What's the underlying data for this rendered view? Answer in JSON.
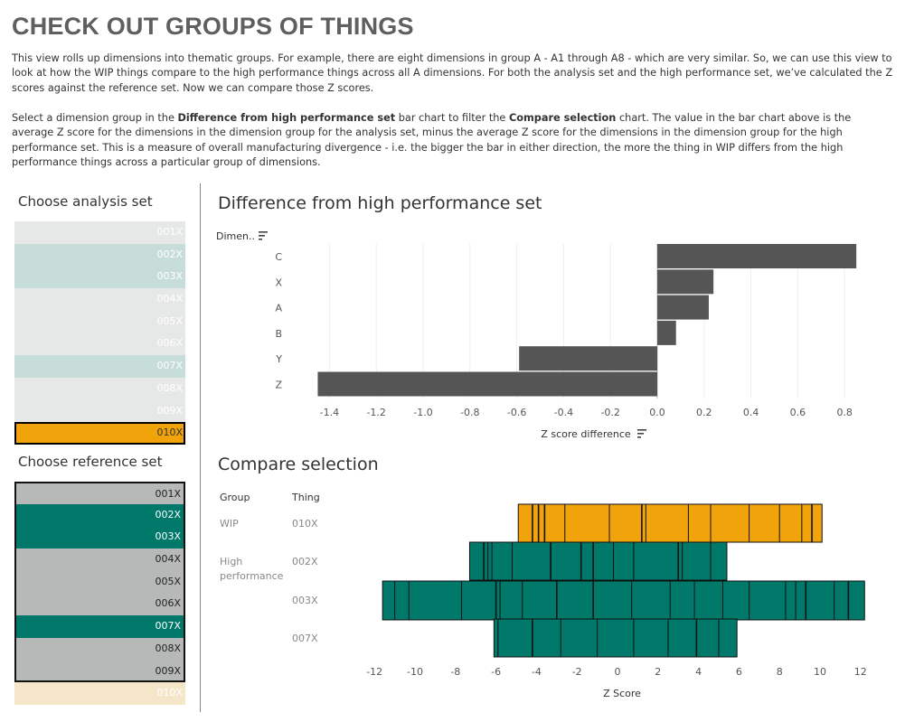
{
  "title": "CHECK OUT GROUPS OF THINGS",
  "intro": {
    "para1": "This view rolls up dimensions into thematic groups. For example, there are eight dimensions in group A - A1 through A8 - which are very similar. So, we can use this view to look at how the WIP things compare to the high performance things across all A dimensions. For both the analysis set and the high performance set, we’ve calculated the Z scores against the reference set. Now we can compare those Z scores.",
    "para2_a": "Select a dimension group in the ",
    "para2_b": "Difference from high performance set",
    "para2_c": " bar chart to filter the ",
    "para2_d": "Compare selection",
    "para2_e": " chart. The value in the bar chart above is the average Z score for the dimensions in the dimension group for the analysis set, minus the average Z score for the dimensions in the dimension group for the high performance set. This is a measure of overall manufacturing divergence - i.e. the bigger the bar in either direction, the more the thing in WIP differs from the high performance things across a particular group of dimensions."
  },
  "analysis_set": {
    "title": "Choose analysis set",
    "items": [
      {
        "label": "001X",
        "state": "light"
      },
      {
        "label": "002X",
        "state": "teal"
      },
      {
        "label": "003X",
        "state": "teal"
      },
      {
        "label": "004X",
        "state": "light"
      },
      {
        "label": "005X",
        "state": "light"
      },
      {
        "label": "006X",
        "state": "light"
      },
      {
        "label": "007X",
        "state": "teal"
      },
      {
        "label": "008X",
        "state": "light"
      },
      {
        "label": "009X",
        "state": "light"
      },
      {
        "label": "010X",
        "state": "selected"
      }
    ]
  },
  "reference_set": {
    "title": "Choose reference set",
    "items": [
      {
        "label": "001X",
        "state": "grey"
      },
      {
        "label": "002X",
        "state": "teal"
      },
      {
        "label": "003X",
        "state": "teal"
      },
      {
        "label": "004X",
        "state": "grey"
      },
      {
        "label": "005X",
        "state": "grey"
      },
      {
        "label": "006X",
        "state": "grey"
      },
      {
        "label": "007X",
        "state": "teal"
      },
      {
        "label": "008X",
        "state": "grey"
      },
      {
        "label": "009X",
        "state": "grey"
      },
      {
        "label": "010X",
        "state": "faded"
      }
    ]
  },
  "colors": {
    "bar_dark": "#555555",
    "wip": "#F0A30A",
    "high_performance": "#00786A",
    "analysis_light": "#E6E8E7",
    "analysis_teal": "#C6DDD9",
    "analysis_selected": "#F0A30A",
    "ref_grey": "#B7B9B9",
    "ref_teal": "#00786A",
    "ref_faded": "#F5E6CA"
  },
  "chart_data": [
    {
      "type": "bar",
      "orientation": "horizontal",
      "title": "Difference from high performance set",
      "ylabel": "Dimen..",
      "xlabel": "Z score difference",
      "categories": [
        "C",
        "X",
        "A",
        "B",
        "Y",
        "Z"
      ],
      "values": [
        0.85,
        0.24,
        0.22,
        0.08,
        -0.59,
        -1.45
      ],
      "xlim": [
        -1.5,
        0.95
      ],
      "xticks": [
        "-1.4",
        "-1.2",
        "-1.0",
        "-0.8",
        "-0.6",
        "-0.4",
        "-0.2",
        "0.0",
        "0.2",
        "0.4",
        "0.6",
        "0.8"
      ],
      "xtick_values": [
        -1.4,
        -1.2,
        -1.0,
        -0.8,
        -0.6,
        -0.4,
        -0.2,
        0.0,
        0.2,
        0.4,
        0.6,
        0.8
      ],
      "grid": "vertical"
    },
    {
      "type": "bar",
      "orientation": "horizontal",
      "stacked": true,
      "title": "Compare selection",
      "xlabel": "Z Score",
      "headers": [
        "Group",
        "Thing"
      ],
      "rows": [
        {
          "group": "WIP",
          "thing": "010X",
          "series": "WIP",
          "min": -4.9,
          "max": 10.1,
          "dividers": [
            -4.2,
            -3.9,
            -3.6,
            -2.6,
            -0.4,
            1.2,
            1.4,
            3.5,
            4.6,
            6.5,
            8.0,
            9.1,
            9.6
          ]
        },
        {
          "group": "High\nperformance",
          "thing": "002X",
          "series": "High performance",
          "min": -7.3,
          "max": 5.4,
          "dividers": [
            -6.6,
            -6.4,
            -6.2,
            -5.2,
            -3.3,
            -1.8,
            -1.2,
            -0.2,
            0.8,
            3.0,
            3.2,
            4.6
          ]
        },
        {
          "group": "",
          "thing": "003X",
          "series": "High performance",
          "min": -11.6,
          "max": 12.2,
          "dividers": [
            -11.0,
            -10.3,
            -7.7,
            -6.0,
            -5.8,
            -4.7,
            -3.0,
            -1.2,
            0.7,
            2.6,
            3.8,
            5.2,
            6.5,
            8.3,
            8.8,
            9.3,
            10.7,
            11.4
          ]
        },
        {
          "group": "",
          "thing": "007X",
          "series": "High performance",
          "min": -6.1,
          "max": 5.9,
          "dividers": [
            -5.9,
            -4.2,
            -2.8,
            -1.0,
            0.8,
            2.5,
            3.9,
            5.0
          ]
        }
      ],
      "xlim": [
        -12.5,
        12.5
      ],
      "xticks": [
        "-12",
        "-10",
        "-8",
        "-6",
        "-4",
        "-2",
        "0",
        "2",
        "4",
        "6",
        "8",
        "10",
        "12"
      ],
      "xtick_values": [
        -12,
        -10,
        -8,
        -6,
        -4,
        -2,
        0,
        2,
        4,
        6,
        8,
        10,
        12
      ]
    }
  ]
}
